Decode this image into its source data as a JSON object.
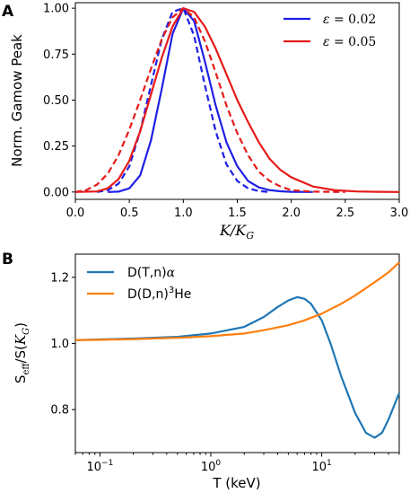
{
  "panel_labels": [
    "A",
    "B"
  ],
  "colors": {
    "blue": "#1f1fe6",
    "red": "#e61a1a",
    "teal": "#1f77b4",
    "orange": "#ff7f0e"
  },
  "chart_data": [
    {
      "type": "line",
      "panel": "A",
      "xlabel": "K/K_G",
      "xlabel_main": "K/K",
      "xlabel_sub": "G",
      "ylabel": "Norm. Gamow Peak",
      "xlim": [
        0.0,
        3.0
      ],
      "ylim": [
        -0.04,
        1.03
      ],
      "xticks": [
        0.0,
        0.5,
        1.0,
        1.5,
        2.0,
        2.5,
        3.0
      ],
      "xtick_labels": [
        "0.0",
        "0.5",
        "1.0",
        "1.5",
        "2.0",
        "2.5",
        "3.0"
      ],
      "yticks": [
        0.0,
        0.25,
        0.5,
        0.75,
        1.0
      ],
      "ytick_labels": [
        "0.00",
        "0.25",
        "0.50",
        "0.75",
        "1.00"
      ],
      "legend_loc": "upper right",
      "legend": [
        {
          "sym": "ε",
          "eq": " = 0.02",
          "color": "#1f1fe6"
        },
        {
          "sym": "ε",
          "eq": " = 0.05",
          "color": "#e61a1a"
        }
      ],
      "series": [
        {
          "color": "#1f1fe6",
          "style": "solid",
          "x": [
            0.3,
            0.4,
            0.5,
            0.6,
            0.7,
            0.8,
            0.9,
            1.0,
            1.1,
            1.2,
            1.3,
            1.4,
            1.5,
            1.6,
            1.7,
            1.8,
            1.9,
            2.0,
            2.2
          ],
          "y": [
            0.0,
            0.002,
            0.02,
            0.09,
            0.28,
            0.56,
            0.86,
            1.0,
            0.93,
            0.71,
            0.47,
            0.27,
            0.14,
            0.06,
            0.025,
            0.01,
            0.004,
            0.001,
            0.0
          ]
        },
        {
          "color": "#1f1fe6",
          "style": "dashed",
          "x": [
            0.2,
            0.3,
            0.4,
            0.5,
            0.6,
            0.7,
            0.8,
            0.9,
            1.0,
            1.1,
            1.2,
            1.3,
            1.4,
            1.5,
            1.6,
            1.7,
            1.8
          ],
          "y": [
            0.0,
            0.01,
            0.045,
            0.14,
            0.33,
            0.58,
            0.83,
            0.98,
            1.0,
            0.85,
            0.58,
            0.33,
            0.15,
            0.06,
            0.02,
            0.005,
            0.0
          ]
        },
        {
          "color": "#e61a1a",
          "style": "solid",
          "x": [
            0.0,
            0.2,
            0.3,
            0.4,
            0.5,
            0.6,
            0.7,
            0.8,
            0.9,
            1.0,
            1.1,
            1.2,
            1.3,
            1.4,
            1.5,
            1.6,
            1.7,
            1.8,
            1.9,
            2.0,
            2.2,
            2.4,
            2.6,
            2.8,
            3.0
          ],
          "y": [
            0.0,
            0.003,
            0.02,
            0.07,
            0.17,
            0.33,
            0.53,
            0.73,
            0.9,
            1.0,
            0.98,
            0.9,
            0.78,
            0.64,
            0.5,
            0.38,
            0.27,
            0.18,
            0.12,
            0.08,
            0.03,
            0.01,
            0.003,
            0.001,
            0.0
          ]
        },
        {
          "color": "#e61a1a",
          "style": "dashed",
          "x": [
            0.0,
            0.1,
            0.2,
            0.3,
            0.4,
            0.5,
            0.6,
            0.7,
            0.8,
            0.9,
            1.0,
            1.1,
            1.2,
            1.3,
            1.4,
            1.5,
            1.6,
            1.7,
            1.8,
            1.9,
            2.0,
            2.2,
            2.5
          ],
          "y": [
            0.0,
            0.01,
            0.04,
            0.1,
            0.2,
            0.34,
            0.5,
            0.67,
            0.83,
            0.95,
            1.0,
            0.95,
            0.82,
            0.65,
            0.47,
            0.32,
            0.2,
            0.11,
            0.06,
            0.03,
            0.01,
            0.002,
            0.0
          ]
        }
      ]
    },
    {
      "type": "line",
      "panel": "B",
      "xscale": "log",
      "xlabel": "T (keV)",
      "ylabel": "S_eff/S(K_G)",
      "ylabel_S": "S",
      "ylabel_eff": "eff",
      "ylabel_rest": "/S(",
      "ylabel_K": "K",
      "ylabel_G": "G",
      "ylabel_close": ")",
      "xlim": [
        0.06,
        50
      ],
      "ylim": [
        0.67,
        1.27
      ],
      "xticks": [
        0.1,
        1,
        10
      ],
      "xtick_base": "10",
      "xtick_exps": [
        "−1",
        "0",
        "1"
      ],
      "yticks": [
        0.8,
        1.0,
        1.2
      ],
      "ytick_labels": [
        "0.8",
        "1.0",
        "1.2"
      ],
      "legend_loc": "upper left",
      "legend": [
        {
          "pre": "D(T,n)",
          "sup": "",
          "post": "α",
          "color": "#1f77b4"
        },
        {
          "pre": "D(D,n)",
          "sup": "3",
          "post": "He",
          "color": "#ff7f0e"
        }
      ],
      "series": [
        {
          "color": "#1f77b4",
          "style": "solid",
          "x": [
            0.06,
            0.1,
            0.2,
            0.5,
            1,
            2,
            3,
            4,
            5,
            6,
            7,
            8,
            10,
            12,
            15,
            20,
            25,
            30,
            35,
            40,
            50
          ],
          "y": [
            1.01,
            1.012,
            1.015,
            1.02,
            1.03,
            1.05,
            1.08,
            1.11,
            1.13,
            1.14,
            1.135,
            1.12,
            1.07,
            1.0,
            0.9,
            0.79,
            0.73,
            0.715,
            0.73,
            0.77,
            0.85
          ]
        },
        {
          "color": "#ff7f0e",
          "style": "solid",
          "x": [
            0.06,
            0.1,
            0.2,
            0.5,
            1,
            2,
            3,
            5,
            7,
            10,
            15,
            20,
            30,
            40,
            50
          ],
          "y": [
            1.01,
            1.011,
            1.013,
            1.017,
            1.022,
            1.03,
            1.04,
            1.055,
            1.07,
            1.09,
            1.12,
            1.145,
            1.185,
            1.215,
            1.245
          ]
        }
      ]
    }
  ]
}
